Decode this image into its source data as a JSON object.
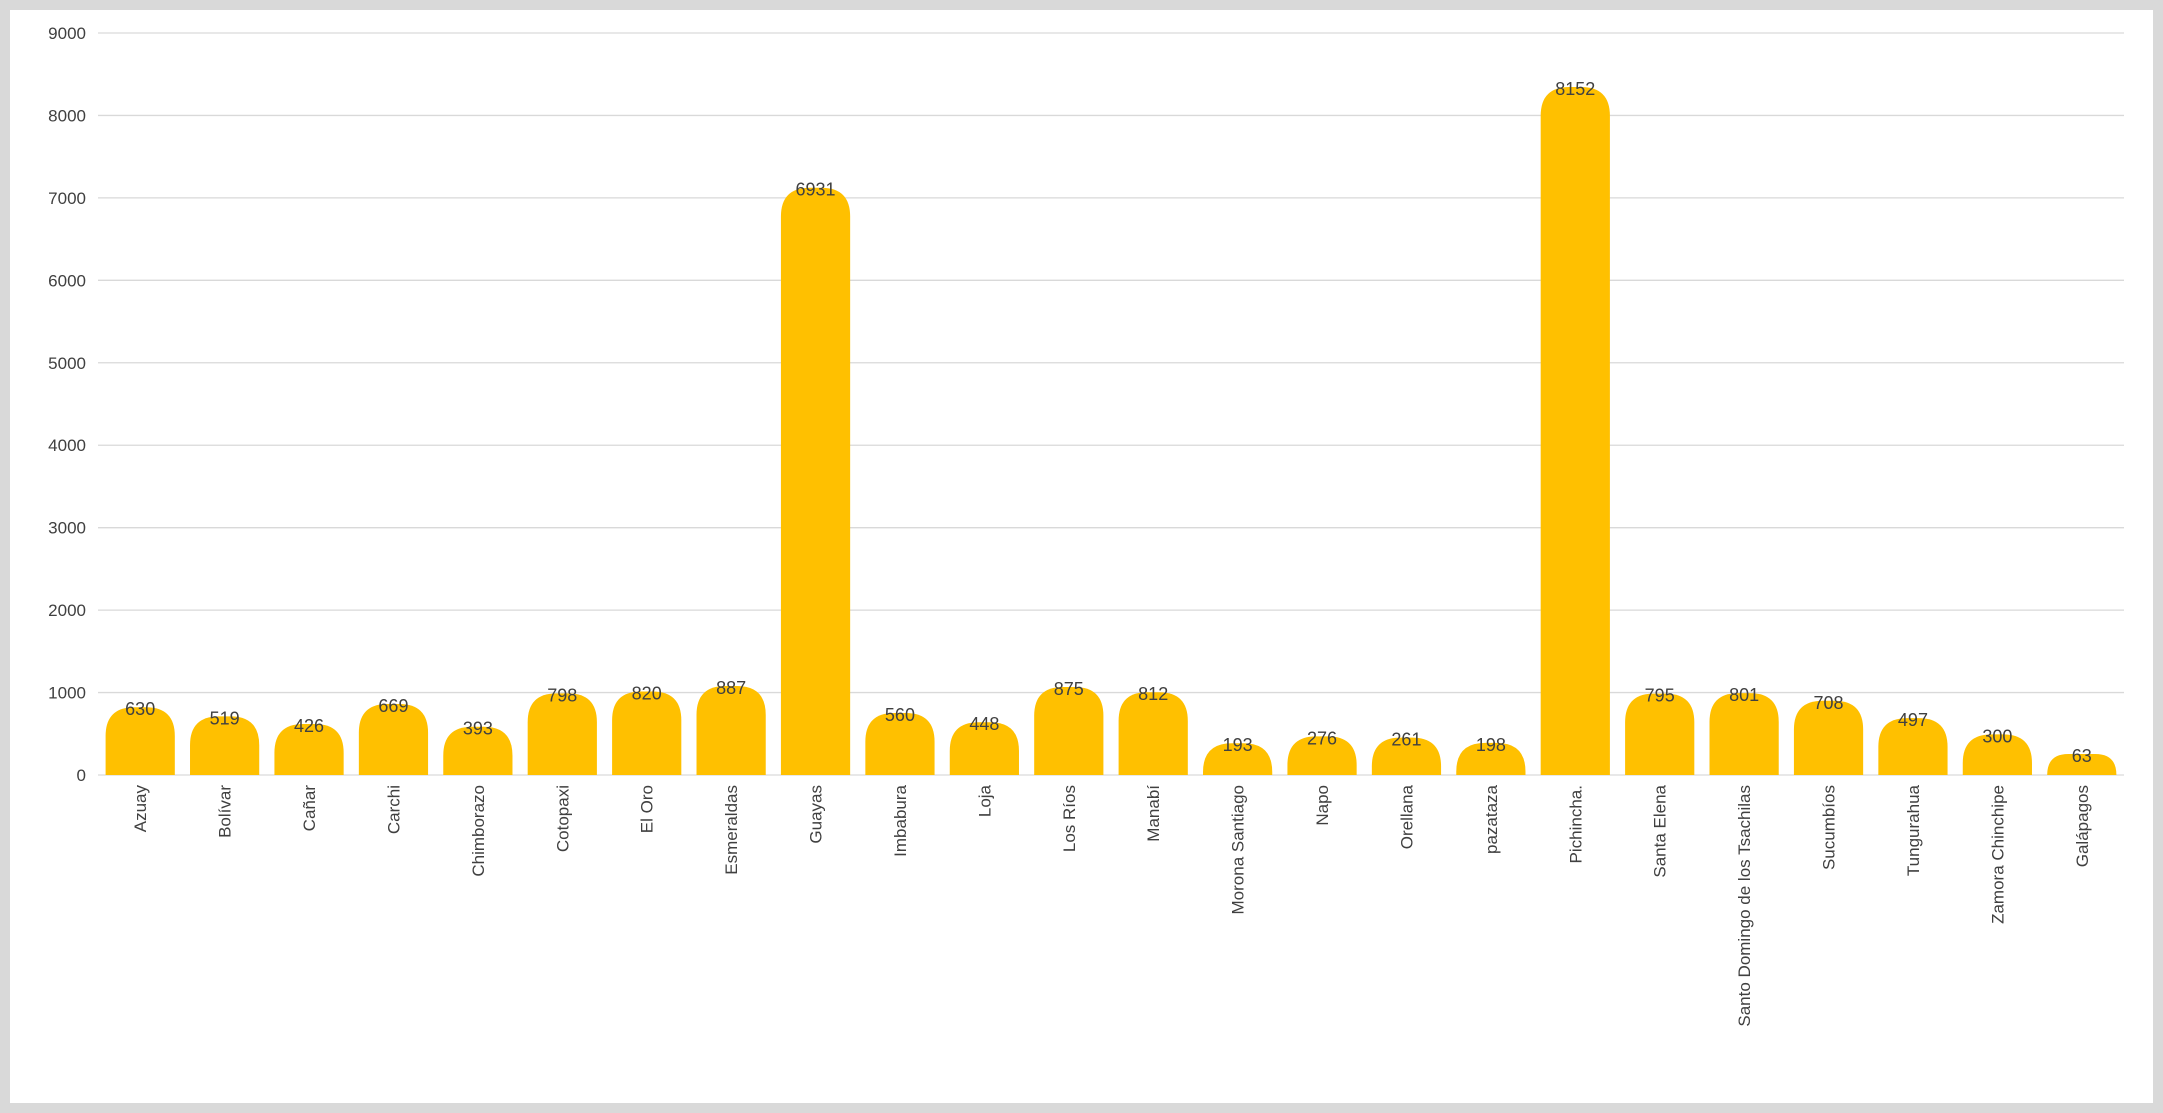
{
  "chart_data": {
    "type": "bar",
    "title": "",
    "xlabel": "",
    "ylabel": "",
    "ylim": [
      0,
      9000
    ],
    "yticks": [
      0,
      1000,
      2000,
      3000,
      4000,
      5000,
      6000,
      7000,
      8000,
      9000
    ],
    "grid": true,
    "legend": "none",
    "bar_color": "#FFC000",
    "bar_style": "rounded-top",
    "categories": [
      "Azuay",
      "Bolívar",
      "Cañar",
      "Carchi",
      "Chimborazo",
      "Cotopaxi",
      "El Oro",
      "Esmeraldas",
      "Guayas",
      "Imbabura",
      "Loja",
      "Los Ríos",
      "Manabí",
      "Morona Santiago",
      "Napo",
      "Orellana",
      "pazataza",
      "Pichincha.",
      "Santa Elena",
      "Santo Domingo de los Tsachilas",
      "Sucumbíos",
      "Tungurahua",
      "Zamora Chinchipe",
      "Galápagos"
    ],
    "values": [
      630,
      519,
      426,
      669,
      393,
      798,
      820,
      887,
      6931,
      560,
      448,
      875,
      812,
      193,
      276,
      261,
      198,
      8152,
      795,
      801,
      708,
      497,
      300,
      63
    ]
  }
}
